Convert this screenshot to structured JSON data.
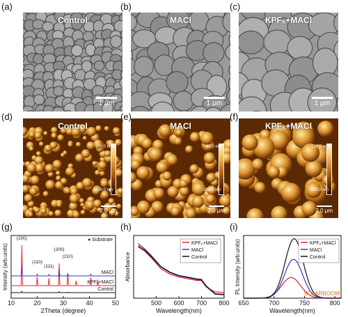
{
  "panels": {
    "a": {
      "label": "(a)",
      "title": "Control",
      "scale": "1 μm"
    },
    "b": {
      "label": "(b)",
      "title": "MACl",
      "scale": "1 μm"
    },
    "c": {
      "label": "(c)",
      "title": "KPF₆+MACl",
      "scale": "1 μm"
    },
    "d": {
      "label": "(d)",
      "title": "Control",
      "cb_top": "100.0 nm",
      "cb_bot": "-100.0 nm",
      "scale": "2.0 μm"
    },
    "e": {
      "label": "(e)",
      "title": "MACl",
      "cb_top": "90.0 nm",
      "cb_bot": "-100.0 nm",
      "scale": "2.0 μm"
    },
    "f": {
      "label": "(f)",
      "title": "KPF₆+MACl",
      "cb_top": "120.0 nm",
      "cb_bot": "-150.0 nm",
      "scale": "2.0 μm"
    },
    "g": {
      "label": "(g)"
    },
    "h": {
      "label": "(h)"
    },
    "i": {
      "label": "(i)"
    }
  },
  "colors": {
    "red": "#e8202a",
    "blue": "#3535c0",
    "black": "#111111"
  },
  "chart_data": [
    {
      "type": "line",
      "panel": "g",
      "xlabel": "2Theta (degree)",
      "ylabel": "Intensity (arb.units)",
      "xlim": [
        10,
        50
      ],
      "xticks": [
        10,
        20,
        30,
        40,
        50
      ],
      "annotations": [
        "(100)",
        "(110)",
        "(111)",
        "(200)",
        "(210)"
      ],
      "legend_note": "♦ Substrate",
      "series": [
        {
          "name": "KPF₆+MACl",
          "color": "red",
          "peaks": [
            [
              14.1,
              1.0
            ],
            [
              20.0,
              0.22
            ],
            [
              24.5,
              0.18
            ],
            [
              28.4,
              0.55
            ],
            [
              31.7,
              0.3
            ],
            [
              34.9,
              0.12
            ],
            [
              40.5,
              0.2
            ],
            [
              43.2,
              0.15
            ]
          ]
        },
        {
          "name": "MACl",
          "color": "blue",
          "peaks": [
            [
              14.1,
              0.45
            ],
            [
              20.0,
              0.08
            ],
            [
              24.5,
              0.07
            ],
            [
              28.4,
              0.3
            ],
            [
              31.7,
              0.1
            ],
            [
              40.5,
              0.08
            ]
          ]
        },
        {
          "name": "Control",
          "color": "black",
          "peaks": [
            [
              14.1,
              0.15
            ],
            [
              28.4,
              0.12
            ],
            [
              31.7,
              0.05
            ]
          ]
        }
      ]
    },
    {
      "type": "line",
      "panel": "h",
      "xlabel": "Wavelength(nm)",
      "ylabel": "Absorbance",
      "xlim": [
        400,
        800
      ],
      "xticks": [
        500,
        600,
        700,
        800
      ],
      "series": [
        {
          "name": "KPF₆+MACl",
          "color": "red",
          "x": [
            420,
            450,
            480,
            520,
            560,
            600,
            640,
            680,
            700,
            720,
            760,
            800
          ],
          "y": [
            4.5,
            4.1,
            3.5,
            2.6,
            2.1,
            1.85,
            1.7,
            1.55,
            1.55,
            1.0,
            0.55,
            0.5
          ]
        },
        {
          "name": "MACl",
          "color": "blue",
          "x": [
            420,
            450,
            480,
            520,
            560,
            600,
            640,
            680,
            700,
            720,
            760,
            800
          ],
          "y": [
            4.8,
            4.3,
            3.7,
            2.8,
            2.3,
            2.0,
            1.85,
            1.7,
            1.65,
            1.1,
            0.4,
            0.35
          ]
        },
        {
          "name": "Control",
          "color": "black",
          "x": [
            420,
            450,
            480,
            520,
            560,
            600,
            640,
            680,
            700,
            720,
            760,
            800
          ],
          "y": [
            4.6,
            4.2,
            3.6,
            2.75,
            2.25,
            1.95,
            1.8,
            1.65,
            1.6,
            1.05,
            0.35,
            0.3
          ]
        }
      ]
    },
    {
      "type": "line",
      "panel": "i",
      "xlabel": "Wavelength(nm)",
      "ylabel": "PL Intensity (arb.units)",
      "xlim": [
        650,
        810
      ],
      "xticks": [
        650,
        700,
        750,
        800
      ],
      "watermark": "SOLARBOOM",
      "series": [
        {
          "name": "KPF₆+MACl",
          "color": "red",
          "peak": 728,
          "height": 0.33,
          "width": 22
        },
        {
          "name": "MACl",
          "color": "blue",
          "peak": 732,
          "height": 0.62,
          "width": 21
        },
        {
          "name": "Control",
          "color": "black",
          "peak": 733,
          "height": 0.95,
          "width": 21
        }
      ]
    }
  ]
}
